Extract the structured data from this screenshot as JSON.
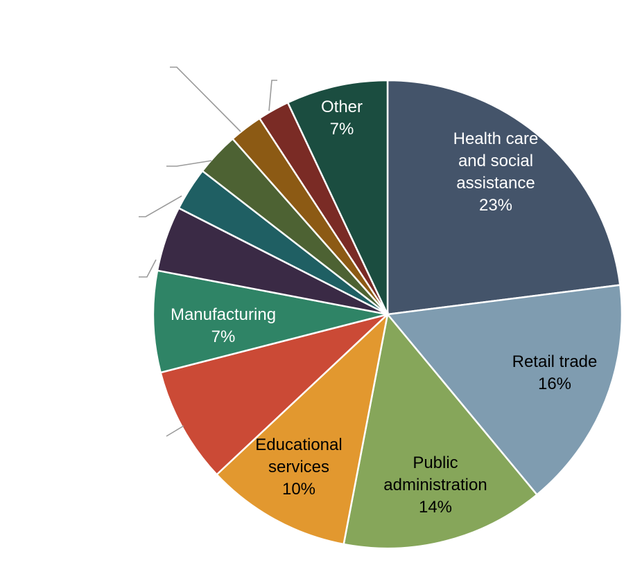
{
  "chart_data": {
    "type": "pie",
    "start_angle_deg": 0,
    "direction": "clockwise",
    "slices": [
      {
        "label": "Health care and social assistance",
        "value": 23,
        "value_label": "23%",
        "color": "#44546A",
        "text_color": "#ffffff",
        "label_lines": [
          "Health care",
          "and social",
          "assistance",
          "23%"
        ]
      },
      {
        "label": "Retail trade",
        "value": 16,
        "value_label": "16%",
        "color": "#7F9CB0",
        "text_color": "#000000",
        "label_lines": [
          "Retail trade",
          "16%"
        ]
      },
      {
        "label": "Public administration",
        "value": 14,
        "value_label": "14%",
        "color": "#86A65A",
        "text_color": "#000000",
        "label_lines": [
          "Public",
          "administration",
          "14%"
        ]
      },
      {
        "label": "Educational services",
        "value": 10,
        "value_label": "10%",
        "color": "#E2982F",
        "text_color": "#000000",
        "label_lines": [
          "Educational",
          "services",
          "10%"
        ]
      },
      {
        "label": "",
        "value": 8,
        "value_label": "",
        "color": "#CB4A36",
        "text_color": "#000000",
        "label_lines": []
      },
      {
        "label": "Manufacturing",
        "value": 7,
        "value_label": "7%",
        "color": "#2F8466",
        "text_color": "#ffffff",
        "label_lines": [
          "Manufacturing",
          "7%"
        ]
      },
      {
        "label": "",
        "value": 4.5,
        "value_label": "",
        "color": "#3A2A45",
        "text_color": "#000000",
        "label_lines": []
      },
      {
        "label": "",
        "value": 3,
        "value_label": "",
        "color": "#1F5F63",
        "text_color": "#000000",
        "label_lines": []
      },
      {
        "label": "",
        "value": 3,
        "value_label": "",
        "color": "#4D6233",
        "text_color": "#000000",
        "label_lines": []
      },
      {
        "label": "",
        "value": 2.3,
        "value_label": "",
        "color": "#8C5A14",
        "text_color": "#000000",
        "label_lines": []
      },
      {
        "label": "",
        "value": 2.2,
        "value_label": "",
        "color": "#7A2B25",
        "text_color": "#000000",
        "label_lines": []
      },
      {
        "label": "Other",
        "value": 7,
        "value_label": "7%",
        "color": "#1B4D40",
        "text_color": "#ffffff",
        "label_lines": [
          "Other",
          "7%"
        ]
      }
    ]
  }
}
